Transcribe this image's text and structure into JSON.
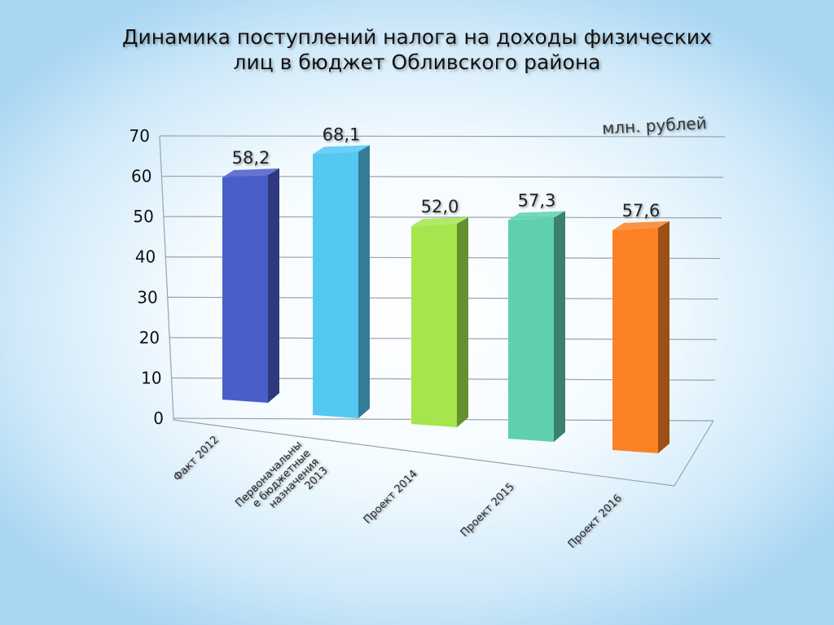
{
  "slide": {
    "title_line1": "Динамика поступлений налога на доходы физических",
    "title_line2": "лиц в бюджет Обливского района"
  },
  "chart_data": {
    "type": "bar",
    "title": "Динамика поступлений налога на доходы физических лиц в бюджет Обливского района",
    "unit_label": "млн. рублей",
    "categories": [
      [
        "Факт 2012"
      ],
      [
        "Первоначальны",
        "е бюджетные",
        "назначения",
        "2013"
      ],
      [
        "Проект 2014"
      ],
      [
        "Проект 2015"
      ],
      [
        "Проект 2016"
      ]
    ],
    "values": [
      58.2,
      68.1,
      52.0,
      57.3,
      57.6
    ],
    "value_labels": [
      "58,2",
      "68,1",
      "52,0",
      "57,3",
      "57,6"
    ],
    "ylim": [
      0,
      70
    ],
    "yticks": [
      "0",
      "10",
      "20",
      "30",
      "40",
      "50",
      "60",
      "70"
    ],
    "grid": true,
    "colors": [
      "#4a5ec9",
      "#55c8f2",
      "#a5e64e",
      "#5ed0b0",
      "#fb8124"
    ]
  }
}
